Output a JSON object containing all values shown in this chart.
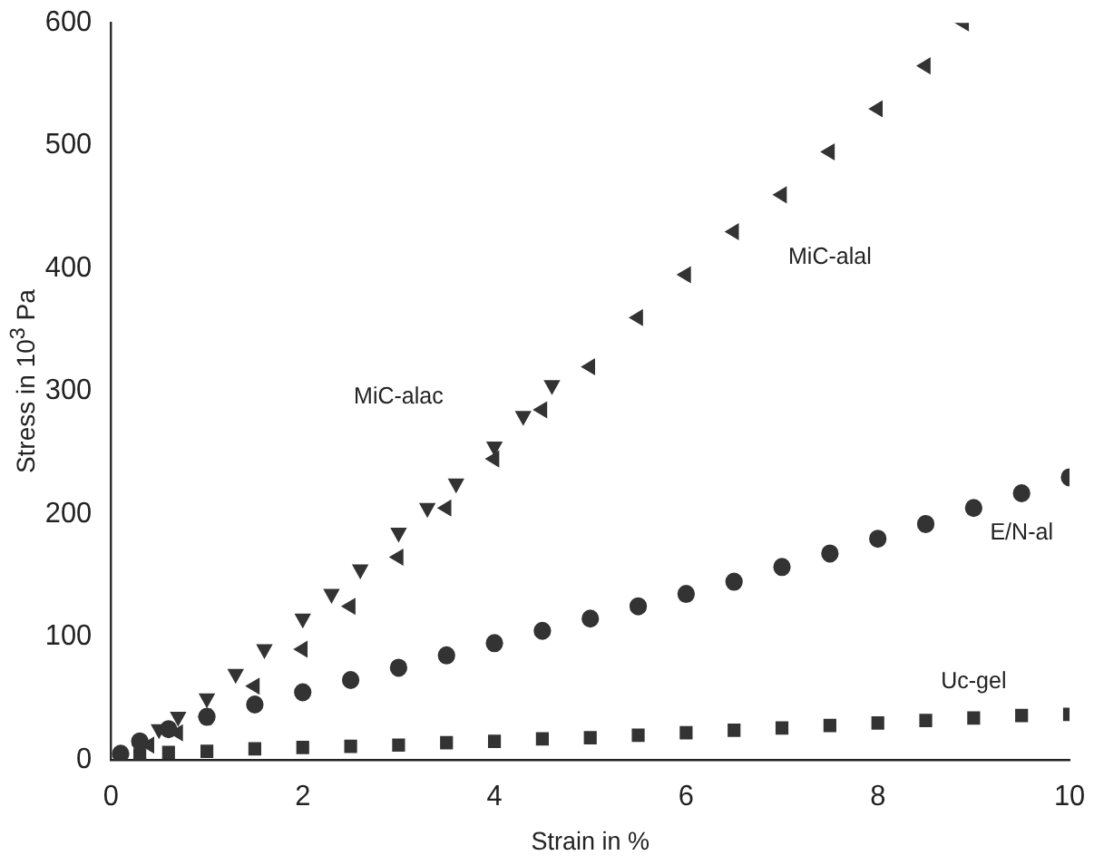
{
  "chart_data": {
    "type": "scatter",
    "xlabel": "Strain in %",
    "ylabel": "Stress in 10$^{3}$ Pa",
    "xlim": [
      0,
      10
    ],
    "ylim": [
      0,
      600
    ],
    "xticks": [
      0,
      2,
      4,
      6,
      8,
      10
    ],
    "yticks": [
      0,
      100,
      200,
      300,
      400,
      500,
      600
    ],
    "grid": false,
    "legend": false,
    "series": [
      {
        "name": "MiC-alac",
        "color": "#333333",
        "marker": "triangle",
        "x": [
          0.5,
          0.7,
          1,
          1.3,
          1.6,
          2,
          2.3,
          2.6,
          3,
          3.3,
          3.6,
          4,
          4.3,
          4.6
        ],
        "values": [
          25,
          35,
          50,
          70,
          90,
          115,
          135,
          155,
          185,
          205,
          225,
          255,
          280,
          305
        ]
      },
      {
        "name": "MiC-alal",
        "color": "#333333",
        "marker": "triangle",
        "x": [
          0.4,
          0.7,
          1,
          1.5,
          2,
          2.5,
          3,
          3.5,
          4,
          4.5,
          5,
          5.5,
          6,
          6.5,
          7,
          7.5,
          8,
          8.5,
          8.9
        ],
        "values": [
          12,
          22,
          35,
          60,
          90,
          125,
          165,
          205,
          245,
          285,
          320,
          360,
          395,
          430,
          460,
          495,
          530,
          565,
          600
        ]
      },
      {
        "name": "E/N-al",
        "color": "#333333",
        "marker": "circle",
        "x": [
          0.1,
          0.3,
          0.6,
          1,
          1.5,
          2,
          2.5,
          3,
          3.5,
          4,
          4.5,
          5,
          5.5,
          6,
          6.5,
          7,
          7.5,
          8,
          8.5,
          9,
          9.5,
          10
        ],
        "values": [
          5,
          15,
          25,
          35,
          45,
          55,
          65,
          75,
          85,
          95,
          105,
          115,
          125,
          135,
          145,
          157,
          168,
          180,
          192,
          205,
          217,
          230
        ]
      },
      {
        "name": "Uc-gel",
        "color": "#333333",
        "marker": "square",
        "x": [
          0.3,
          0.6,
          1,
          1.5,
          2,
          2.5,
          3,
          3.5,
          4,
          4.5,
          5,
          5.5,
          6,
          6.5,
          7,
          7.5,
          8,
          8.5,
          9,
          9.5,
          10
        ],
        "values": [
          4,
          6,
          7,
          9,
          10,
          11,
          12,
          14,
          15,
          17,
          18,
          20,
          22,
          24,
          26,
          28,
          30,
          32,
          34,
          36,
          37
        ]
      }
    ]
  }
}
